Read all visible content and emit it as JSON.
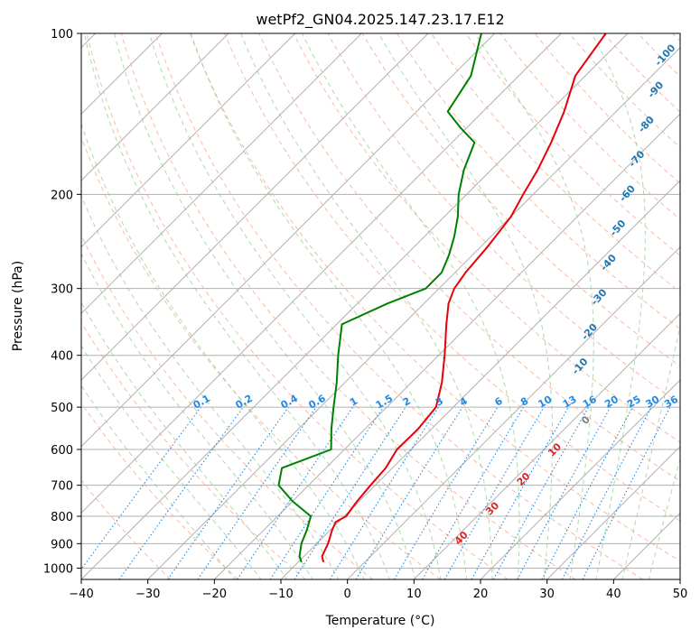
{
  "chart_data": {
    "type": "line",
    "title": "wetPf2_GN04.2025.147.23.17.E12",
    "xlabel": "Temperature (°C)",
    "ylabel": "Pressure (hPa)",
    "xlim": [
      -40,
      50
    ],
    "ylim": [
      1050,
      100
    ],
    "y_scale": "log",
    "x_ticks": [
      -40,
      -30,
      -20,
      -10,
      0,
      10,
      20,
      30,
      40,
      50
    ],
    "x_tick_labels": [
      "−40",
      "−30",
      "−20",
      "−10",
      "0",
      "10",
      "20",
      "30",
      "40",
      "50"
    ],
    "y_ticks": [
      1000,
      900,
      800,
      700,
      600,
      500,
      400,
      300,
      200,
      100
    ],
    "y_tick_labels": [
      "1000",
      "900",
      "800",
      "700",
      "600",
      "500",
      "400",
      "300",
      "200",
      "100"
    ],
    "grid": true,
    "series": [
      {
        "color": "#e8000b",
        "points": [
          [
            975,
            -6.2
          ],
          [
            950,
            -7.3
          ],
          [
            900,
            -8.3
          ],
          [
            850,
            -9.7
          ],
          [
            820,
            -10.4
          ],
          [
            800,
            -9.7
          ],
          [
            750,
            -10.3
          ],
          [
            700,
            -10.7
          ],
          [
            650,
            -11.0
          ],
          [
            600,
            -12.1
          ],
          [
            550,
            -12.0
          ],
          [
            500,
            -12.6
          ],
          [
            450,
            -15.4
          ],
          [
            400,
            -19.1
          ],
          [
            350,
            -23.5
          ],
          [
            320,
            -26.3
          ],
          [
            300,
            -27.7
          ],
          [
            280,
            -28.4
          ],
          [
            250,
            -29.0
          ],
          [
            220,
            -30.0
          ],
          [
            200,
            -31.5
          ],
          [
            180,
            -33.0
          ],
          [
            160,
            -35.1
          ],
          [
            140,
            -37.8
          ],
          [
            120,
            -41.5
          ],
          [
            100,
            -43.3
          ]
        ]
      },
      {
        "color": "#008000",
        "points": [
          [
            975,
            -9.5
          ],
          [
            950,
            -10.7
          ],
          [
            900,
            -12.3
          ],
          [
            850,
            -13.5
          ],
          [
            800,
            -15.0
          ],
          [
            750,
            -20.0
          ],
          [
            700,
            -24.5
          ],
          [
            650,
            -26.6
          ],
          [
            600,
            -22.0
          ],
          [
            550,
            -25.0
          ],
          [
            500,
            -28.0
          ],
          [
            450,
            -31.2
          ],
          [
            400,
            -35.1
          ],
          [
            350,
            -39.2
          ],
          [
            320,
            -35.5
          ],
          [
            300,
            -32.0
          ],
          [
            280,
            -32.0
          ],
          [
            260,
            -33.5
          ],
          [
            240,
            -35.5
          ],
          [
            220,
            -38.0
          ],
          [
            200,
            -41.2
          ],
          [
            180,
            -44.1
          ],
          [
            160,
            -46.6
          ],
          [
            150,
            -51.0
          ],
          [
            140,
            -55.3
          ],
          [
            120,
            -57.2
          ],
          [
            100,
            -62.0
          ]
        ]
      }
    ],
    "dry_adiabat_labels": [
      "-100",
      "-90",
      "-80",
      "-70",
      "-60",
      "-50",
      "-40",
      "-30",
      "-20",
      "-10"
    ],
    "mixing_ratio_labels": [
      "0.1",
      "0.2",
      "0.4",
      "0.6",
      "1",
      "1.5",
      "2",
      "3",
      "4",
      "6",
      "8",
      "10",
      "13",
      "16",
      "20",
      "25",
      "30",
      "36"
    ],
    "moist_adiabat_labels": [
      "0",
      "10",
      "20",
      "30",
      "40"
    ],
    "colors": {
      "temperature": "#e8000b",
      "dewpoint": "#008000",
      "isotherm_and_isobar_grid": "#b0b0b0",
      "dry_adiabat": "#f9a98c",
      "moist_adiabat": "#8cc98c",
      "mixing_ratio": "#1f8ae6",
      "dry_adiabat_label": "#1f77b4",
      "mixing_ratio_label": "#1f8ae6",
      "moist_adiabat_label": "#d62728",
      "zero_label": "#7f7f7f",
      "tan_curve": "#d9c3a3"
    }
  }
}
